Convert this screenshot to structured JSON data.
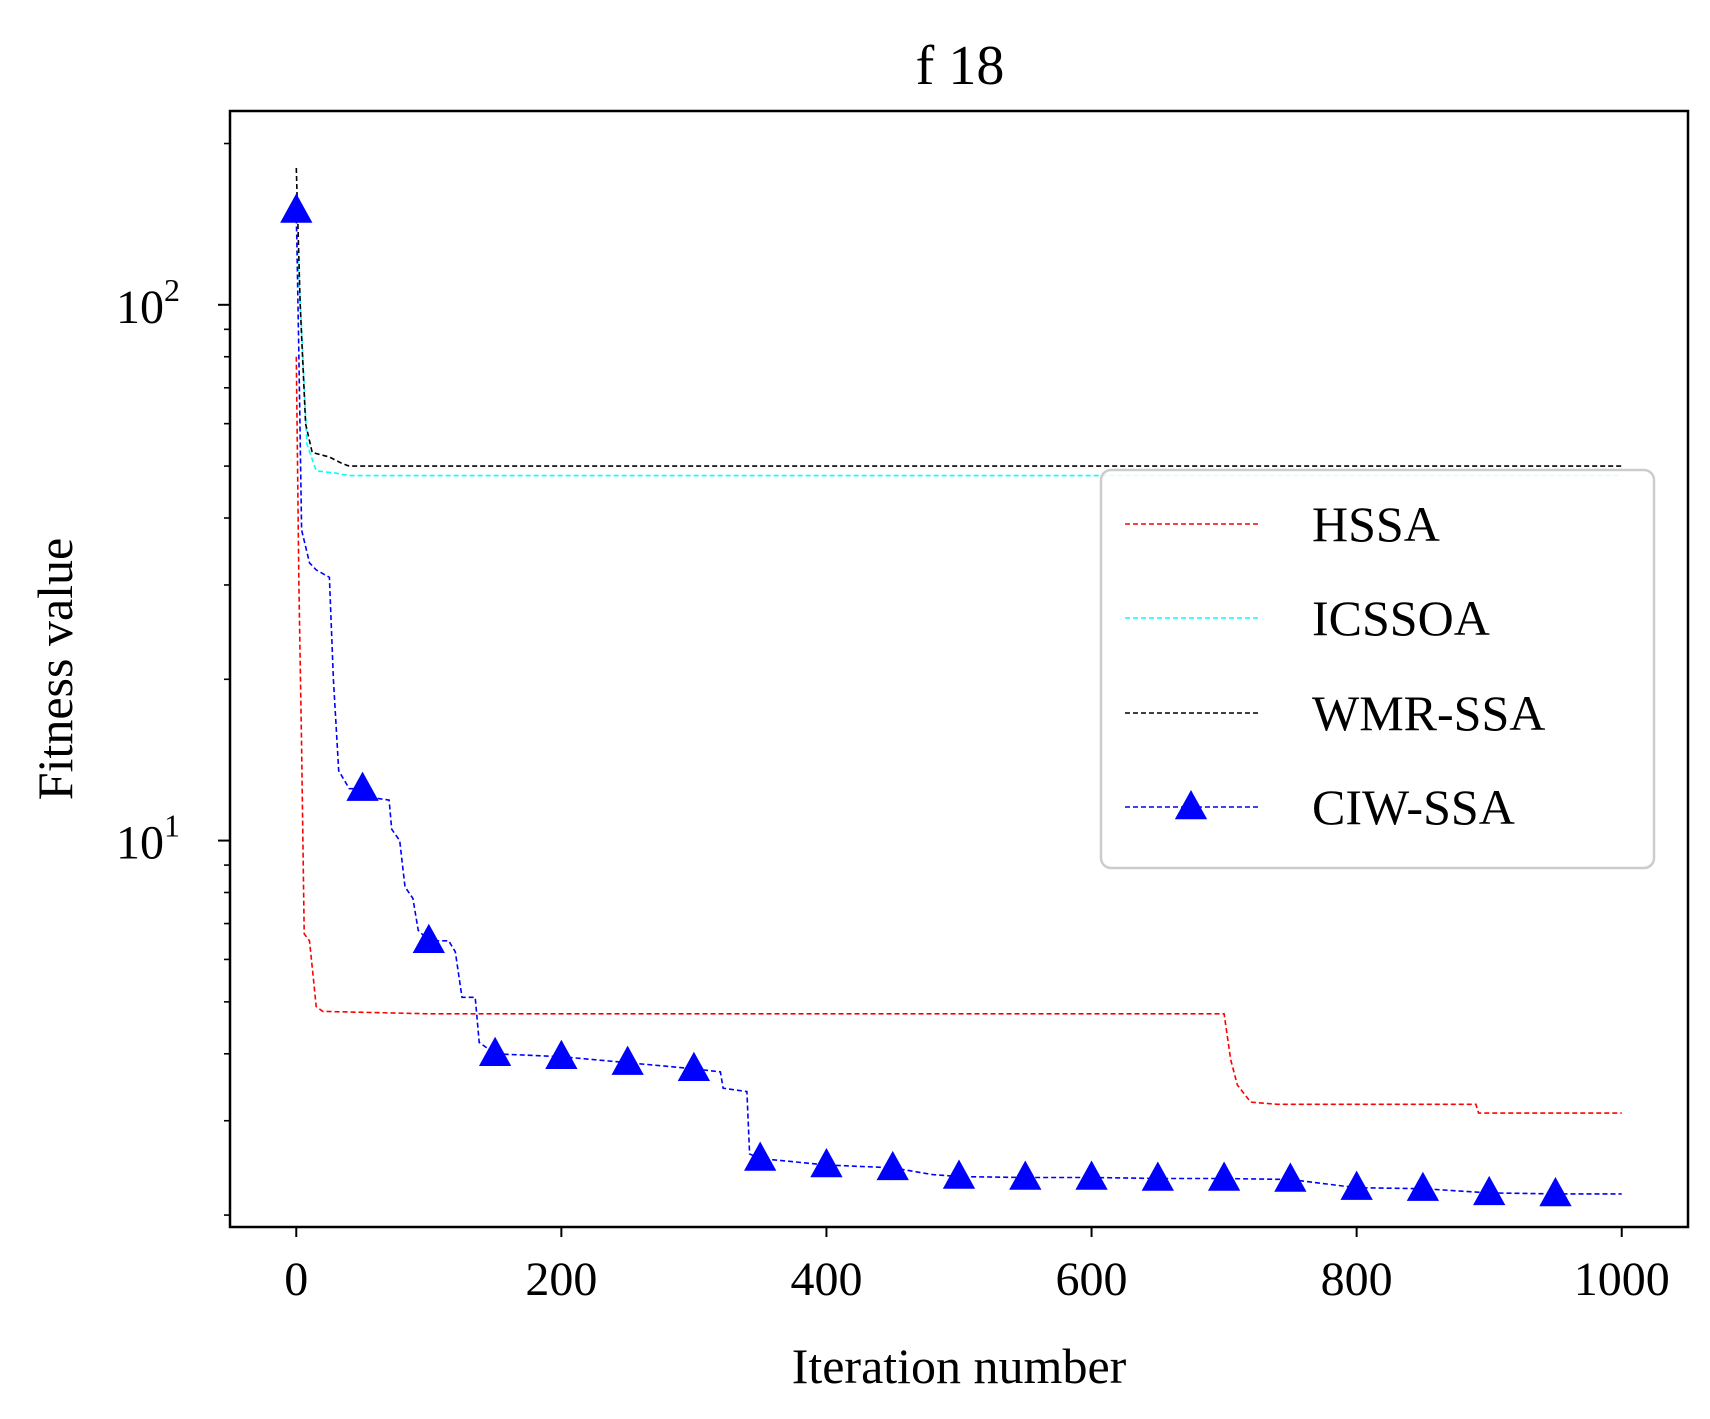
{
  "chart_data": {
    "type": "line",
    "title": "f 18",
    "xlabel": "Iteration number",
    "ylabel": "Fitness value",
    "xlim": [
      -50,
      1050
    ],
    "ylim": [
      1.9,
      230
    ],
    "yscale": "log",
    "x_ticks": [
      "0",
      "200",
      "400",
      "600",
      "800",
      "1000"
    ],
    "y_ticks": [
      {
        "base": "10",
        "exp": "1"
      },
      {
        "base": "10",
        "exp": "2"
      }
    ],
    "grid": false,
    "legend_position": "center-right",
    "series": [
      {
        "name": "HSSA",
        "color": "#ff0000",
        "marker": "none",
        "points": [
          [
            0,
            80
          ],
          [
            2,
            30
          ],
          [
            4,
            15
          ],
          [
            6,
            6.7
          ],
          [
            10,
            6.5
          ],
          [
            13,
            5.5
          ],
          [
            15,
            4.9
          ],
          [
            20,
            4.8
          ],
          [
            100,
            4.75
          ],
          [
            700,
            4.75
          ],
          [
            705,
            3.9
          ],
          [
            710,
            3.5
          ],
          [
            720,
            3.25
          ],
          [
            740,
            3.22
          ],
          [
            890,
            3.22
          ],
          [
            892,
            3.1
          ],
          [
            1000,
            3.1
          ]
        ]
      },
      {
        "name": "ICSSOA",
        "color": "#00ffff",
        "marker": "none",
        "points": [
          [
            0,
            140
          ],
          [
            4,
            90
          ],
          [
            8,
            55
          ],
          [
            15,
            49
          ],
          [
            30,
            48.5
          ],
          [
            40,
            48
          ],
          [
            1000,
            48
          ]
        ]
      },
      {
        "name": "WMR-SSA",
        "color": "#000000",
        "marker": "none",
        "points": [
          [
            0,
            180
          ],
          [
            3,
            100
          ],
          [
            7,
            60
          ],
          [
            12,
            53
          ],
          [
            25,
            52
          ],
          [
            35,
            50.5
          ],
          [
            40,
            50
          ],
          [
            1000,
            50
          ]
        ]
      },
      {
        "name": "CIW-SSA",
        "color": "#0000ff",
        "marker": "triangle",
        "points": [
          [
            0,
            150
          ],
          [
            2,
            80
          ],
          [
            4,
            38
          ],
          [
            10,
            33
          ],
          [
            15,
            32
          ],
          [
            25,
            31
          ],
          [
            28,
            20
          ],
          [
            32,
            13.5
          ],
          [
            40,
            12.5
          ],
          [
            50,
            12.5
          ],
          [
            60,
            12
          ],
          [
            70,
            11.9
          ],
          [
            72,
            10.5
          ],
          [
            78,
            10
          ],
          [
            82,
            8.2
          ],
          [
            88,
            7.8
          ],
          [
            92,
            6.8
          ],
          [
            100,
            6.5
          ],
          [
            115,
            6.5
          ],
          [
            120,
            6.2
          ],
          [
            125,
            5.1
          ],
          [
            135,
            5.1
          ],
          [
            138,
            4.2
          ],
          [
            150,
            4.0
          ],
          [
            200,
            3.95
          ],
          [
            250,
            3.85
          ],
          [
            300,
            3.75
          ],
          [
            320,
            3.7
          ],
          [
            322,
            3.45
          ],
          [
            340,
            3.4
          ],
          [
            342,
            2.6
          ],
          [
            350,
            2.55
          ],
          [
            400,
            2.48
          ],
          [
            450,
            2.45
          ],
          [
            480,
            2.38
          ],
          [
            500,
            2.36
          ],
          [
            550,
            2.35
          ],
          [
            600,
            2.35
          ],
          [
            650,
            2.34
          ],
          [
            700,
            2.34
          ],
          [
            750,
            2.33
          ],
          [
            800,
            2.25
          ],
          [
            850,
            2.24
          ],
          [
            900,
            2.2
          ],
          [
            950,
            2.19
          ],
          [
            1000,
            2.19
          ]
        ],
        "marker_points": [
          [
            0,
            150
          ],
          [
            50,
            12.5
          ],
          [
            100,
            6.5
          ],
          [
            150,
            4.0
          ],
          [
            200,
            3.95
          ],
          [
            250,
            3.85
          ],
          [
            300,
            3.75
          ],
          [
            350,
            2.55
          ],
          [
            400,
            2.48
          ],
          [
            450,
            2.45
          ],
          [
            500,
            2.36
          ],
          [
            550,
            2.35
          ],
          [
            600,
            2.35
          ],
          [
            650,
            2.34
          ],
          [
            700,
            2.34
          ],
          [
            750,
            2.33
          ],
          [
            800,
            2.25
          ],
          [
            850,
            2.24
          ],
          [
            900,
            2.2
          ],
          [
            950,
            2.19
          ]
        ]
      }
    ]
  }
}
